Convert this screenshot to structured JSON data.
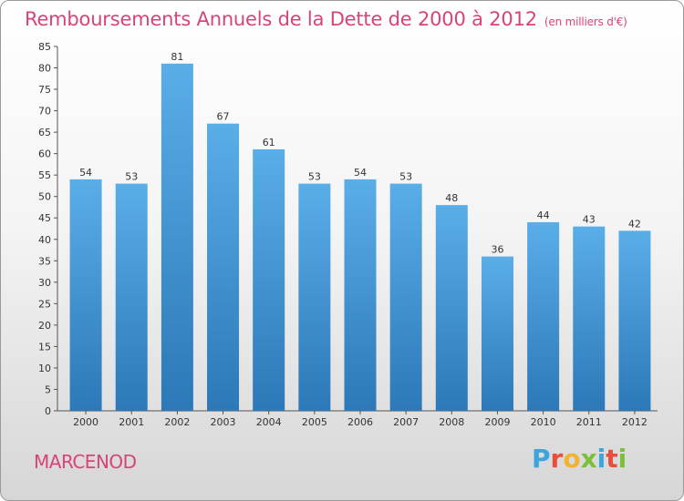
{
  "header": {
    "title": "Remboursements Annuels de la Dette de 2000 à 2012",
    "unit": "(en milliers d'€)"
  },
  "footer": {
    "commune": "MARCENOD",
    "logo_letters": [
      "P",
      "r",
      "o",
      "x",
      "i",
      "t",
      "i"
    ],
    "logo_colors": [
      "#3aa6dc",
      "#e94e3d",
      "#f2b233",
      "#7bbf3a",
      "#3aa6dc",
      "#e94e3d",
      "#7bbf3a"
    ]
  },
  "chart_data": {
    "type": "bar",
    "categories": [
      "2000",
      "2001",
      "2002",
      "2003",
      "2004",
      "2005",
      "2006",
      "2007",
      "2008",
      "2009",
      "2010",
      "2011",
      "2012"
    ],
    "values": [
      54,
      53,
      81,
      67,
      61,
      53,
      54,
      53,
      48,
      36,
      44,
      43,
      42
    ],
    "ylim": [
      0,
      85
    ],
    "yticks": [
      0,
      5,
      10,
      15,
      20,
      25,
      30,
      35,
      40,
      45,
      50,
      55,
      60,
      65,
      70,
      75,
      80,
      85
    ],
    "bar_color_top": "#5aaee8",
    "bar_color_bottom": "#2c78b8",
    "grid": false
  }
}
